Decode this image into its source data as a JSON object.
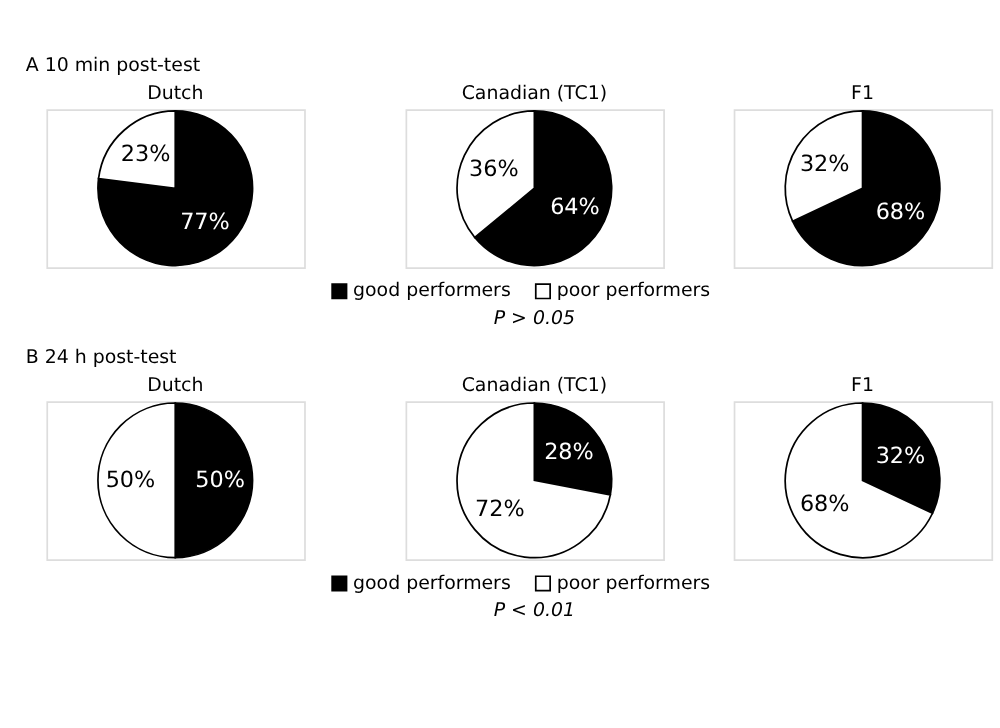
{
  "chart_data": [
    {
      "type": "pie",
      "title": "Dutch",
      "annotations": [
        "A 10 min post-test"
      ],
      "categories": [
        null,
        null
      ],
      "values": [
        77,
        23
      ],
      "value_labels": [
        "77%",
        "23%"
      ],
      "colors": [
        "#000000",
        "#ffffff"
      ]
    },
    {
      "type": "pie",
      "title": "Canadian (TC1)",
      "annotations": [
        "P > 0.05"
      ],
      "legend": "bottom",
      "categories": [
        "good performers",
        "poor performers"
      ],
      "values": [
        64,
        36
      ],
      "value_labels": [
        "64%",
        "36%"
      ],
      "colors": [
        "#000000",
        "#ffffff"
      ]
    },
    {
      "type": "pie",
      "title": "F1",
      "categories": [
        null,
        null
      ],
      "values": [
        68,
        32
      ],
      "value_labels": [
        "68%",
        "32%"
      ],
      "colors": [
        "#000000",
        "#ffffff"
      ]
    },
    {
      "type": "pie",
      "title": "Dutch",
      "annotations": [
        "B 24 h post-test"
      ],
      "categories": [
        null,
        null
      ],
      "values": [
        50,
        50
      ],
      "value_labels": [
        "50%",
        "50%"
      ],
      "colors": [
        "#000000",
        "#ffffff"
      ]
    },
    {
      "type": "pie",
      "title": "Canadian (TC1)",
      "annotations": [
        "P < 0.01"
      ],
      "legend": "bottom",
      "categories": [
        "good performers",
        "poor performers"
      ],
      "values": [
        28,
        72
      ],
      "value_labels": [
        "28%",
        "72%"
      ],
      "colors": [
        "#000000",
        "#ffffff"
      ]
    },
    {
      "type": "pie",
      "title": "F1",
      "categories": [
        null,
        null
      ],
      "values": [
        32,
        68
      ],
      "value_labels": [
        "32%",
        "68%"
      ],
      "colors": [
        "#000000",
        "#ffffff"
      ]
    }
  ]
}
